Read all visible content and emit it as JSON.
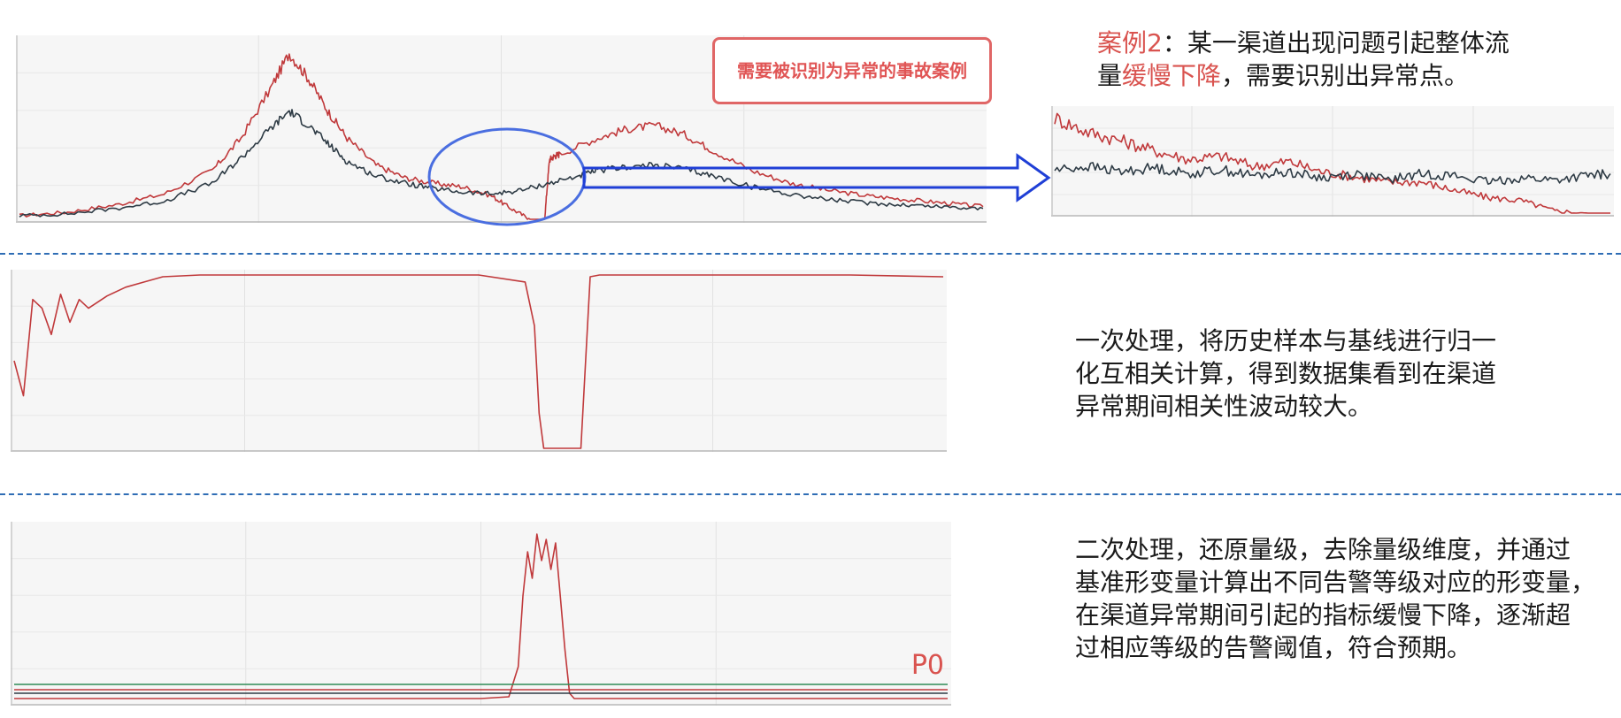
{
  "annotations": {
    "callout": "需要被识别为异常的事故案例",
    "p0_label": "P0"
  },
  "descriptions": {
    "case": {
      "prefix": "案例2",
      "t1": "：某一渠道出现问题引起整体流",
      "t2a": "量",
      "t2hl": "缓慢下降",
      "t2b": "，需要识别出异常点。"
    },
    "first": [
      "一次处理，将历史样本与基线进行归一",
      "化互相关计算，得到数据集看到在渠道",
      "异常期间相关性波动较大。"
    ],
    "second": [
      "二次处理，还原量级，去除量级维度，并通过",
      "基准形变量计算出不同告警等级对应的形变量，",
      "在渠道异常期间引起的指标缓慢下降，逐渐超",
      "过相应等级的告警阈值，符合预期。"
    ]
  },
  "colors": {
    "red": "#c0393b",
    "dark": "#2e3b45",
    "blue": "#1f3fd6",
    "ellipse": "#4a6ee0",
    "divider": "#2f6db5",
    "highlight": "#d9534f"
  },
  "chart_data": [
    {
      "type": "line",
      "x_range": [
        0,
        1
      ],
      "ylim": [
        0,
        1
      ],
      "grid": true,
      "series": [
        {
          "color": "#c0393b",
          "x": [
            0,
            0.05,
            0.1,
            0.15,
            0.2,
            0.23,
            0.26,
            0.28,
            0.3,
            0.32,
            0.34,
            0.37,
            0.4,
            0.43,
            0.46,
            0.49,
            0.51,
            0.53,
            0.545,
            0.55,
            0.555,
            0.56,
            0.6,
            0.63,
            0.66,
            0.69,
            0.72,
            0.76,
            0.8,
            0.84,
            0.88,
            0.92,
            0.96,
            1
          ],
          "y": [
            0.02,
            0.04,
            0.08,
            0.14,
            0.27,
            0.45,
            0.72,
            0.92,
            0.78,
            0.6,
            0.45,
            0.3,
            0.23,
            0.2,
            0.18,
            0.13,
            0.06,
            0.0,
            0.0,
            0.33,
            0.35,
            0.36,
            0.45,
            0.5,
            0.52,
            0.47,
            0.38,
            0.27,
            0.2,
            0.16,
            0.13,
            0.11,
            0.09,
            0.07
          ]
        },
        {
          "color": "#2e3b45",
          "x": [
            0,
            0.05,
            0.1,
            0.15,
            0.2,
            0.23,
            0.26,
            0.28,
            0.3,
            0.32,
            0.34,
            0.37,
            0.4,
            0.43,
            0.46,
            0.49,
            0.52,
            0.55,
            0.58,
            0.6,
            0.63,
            0.66,
            0.69,
            0.72,
            0.76,
            0.8,
            0.84,
            0.88,
            0.92,
            0.96,
            1
          ],
          "y": [
            0.02,
            0.03,
            0.06,
            0.1,
            0.2,
            0.34,
            0.5,
            0.6,
            0.52,
            0.42,
            0.32,
            0.24,
            0.2,
            0.17,
            0.15,
            0.14,
            0.16,
            0.2,
            0.24,
            0.27,
            0.29,
            0.3,
            0.28,
            0.24,
            0.18,
            0.14,
            0.11,
            0.09,
            0.08,
            0.07,
            0.06
          ]
        }
      ]
    },
    {
      "type": "line",
      "x_range": [
        0,
        1
      ],
      "ylim": [
        0,
        1
      ],
      "grid": true,
      "series": [
        {
          "color": "#c0393b",
          "x": [
            0,
            0.06,
            0.12,
            0.18,
            0.24,
            0.3,
            0.36,
            0.42,
            0.48,
            0.54,
            0.6,
            0.66,
            0.72,
            0.78,
            0.84,
            0.9,
            0.96,
            1
          ],
          "y": [
            0.92,
            0.78,
            0.7,
            0.6,
            0.52,
            0.55,
            0.45,
            0.5,
            0.4,
            0.35,
            0.3,
            0.3,
            0.22,
            0.15,
            0.12,
            0.02,
            0.0,
            0.0
          ]
        },
        {
          "color": "#2e3b45",
          "x": [
            0,
            0.06,
            0.12,
            0.18,
            0.24,
            0.3,
            0.36,
            0.42,
            0.48,
            0.54,
            0.6,
            0.66,
            0.72,
            0.78,
            0.84,
            0.9,
            0.96,
            1
          ],
          "y": [
            0.42,
            0.45,
            0.4,
            0.44,
            0.38,
            0.42,
            0.36,
            0.4,
            0.34,
            0.38,
            0.32,
            0.38,
            0.36,
            0.3,
            0.34,
            0.32,
            0.36,
            0.38
          ]
        }
      ]
    },
    {
      "type": "line",
      "x_range": [
        0,
        1
      ],
      "ylim": [
        0,
        1
      ],
      "grid": true,
      "series": [
        {
          "color": "#c0393b",
          "x": [
            0,
            0.01,
            0.02,
            0.03,
            0.04,
            0.05,
            0.06,
            0.07,
            0.08,
            0.1,
            0.12,
            0.14,
            0.16,
            0.2,
            0.3,
            0.4,
            0.5,
            0.55,
            0.56,
            0.565,
            0.57,
            0.575,
            0.58,
            0.59,
            0.6,
            0.61,
            0.62,
            0.63,
            0.65,
            0.7,
            0.8,
            0.9,
            1
          ],
          "y": [
            0.5,
            0.3,
            0.85,
            0.8,
            0.65,
            0.88,
            0.72,
            0.85,
            0.8,
            0.87,
            0.92,
            0.95,
            0.98,
            0.99,
            0.99,
            0.99,
            0.99,
            0.95,
            0.7,
            0.2,
            0.0,
            0.0,
            0.0,
            0.0,
            0.0,
            0.0,
            0.98,
            0.99,
            0.99,
            0.99,
            0.99,
            0.99,
            0.98
          ]
        }
      ]
    },
    {
      "type": "line",
      "x_range": [
        0,
        1
      ],
      "ylim": [
        0,
        1
      ],
      "grid": true,
      "series": [
        {
          "color": "#c0393b",
          "x": [
            0,
            0.2,
            0.4,
            0.5,
            0.53,
            0.54,
            0.545,
            0.55,
            0.555,
            0.56,
            0.565,
            0.57,
            0.575,
            0.58,
            0.585,
            0.59,
            0.595,
            0.6,
            0.65,
            0.7,
            0.8,
            0.9,
            1
          ],
          "y": [
            0.02,
            0.02,
            0.02,
            0.02,
            0.03,
            0.2,
            0.6,
            0.85,
            0.7,
            0.95,
            0.8,
            0.92,
            0.75,
            0.9,
            0.6,
            0.3,
            0.05,
            0.02,
            0.02,
            0.02,
            0.02,
            0.02,
            0.02
          ]
        },
        {
          "color": "#2e8b57",
          "x": [
            0,
            1
          ],
          "y": [
            0.1,
            0.1
          ]
        },
        {
          "color": "#c0393b",
          "x": [
            0,
            1
          ],
          "y": [
            0.07,
            0.07
          ]
        },
        {
          "color": "#2e3b45",
          "x": [
            0,
            1
          ],
          "y": [
            0.05,
            0.05
          ]
        }
      ]
    }
  ]
}
